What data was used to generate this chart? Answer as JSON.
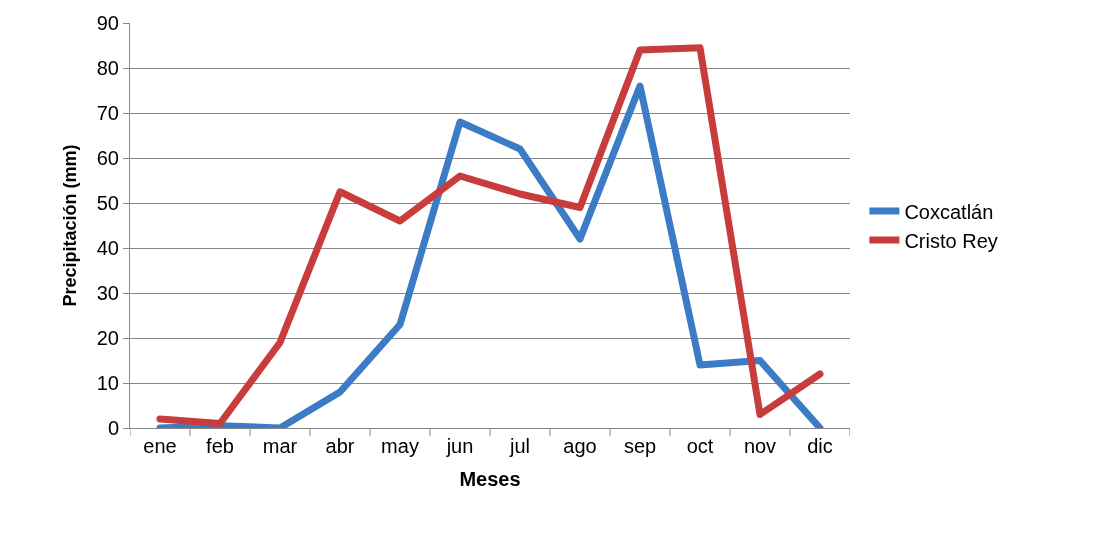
{
  "chart_data": {
    "type": "line",
    "xlabel": "Meses",
    "ylabel": "Precipitación (mm)",
    "categories": [
      "ene",
      "feb",
      "mar",
      "abr",
      "may",
      "jun",
      "jul",
      "ago",
      "sep",
      "oct",
      "nov",
      "dic"
    ],
    "series": [
      {
        "name": "Coxcatlán",
        "color": "#3c7cc6",
        "values": [
          0,
          0.5,
          0,
          8,
          23,
          68,
          62,
          42,
          76,
          14,
          15,
          0
        ]
      },
      {
        "name": "Cristo Rey",
        "color": "#c83c3c",
        "values": [
          2,
          1,
          19,
          52.5,
          46,
          56,
          52,
          49,
          84,
          84.5,
          3,
          12
        ]
      }
    ],
    "ylim": [
      0,
      90
    ],
    "yticks": [
      0,
      10,
      20,
      30,
      40,
      50,
      60,
      70,
      80,
      90
    ],
    "grid": "y",
    "legend": "right",
    "marker": "none",
    "line_style": "solid"
  }
}
